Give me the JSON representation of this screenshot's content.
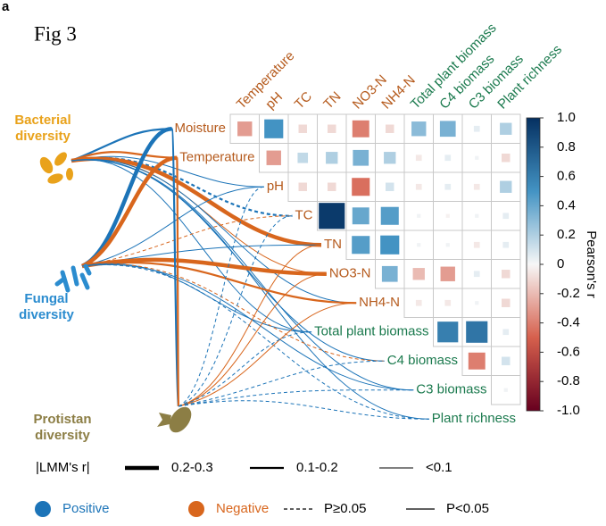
{
  "panel_label": "a",
  "fig_title": "Fig 3",
  "chart_data": {
    "type": "heatmap",
    "columns": [
      "Temperature",
      "pH",
      "TC",
      "TN",
      "NO3-N",
      "NH4-N",
      "Total plant biomass",
      "C4 biomass",
      "C3 biomass",
      "Plant richness"
    ],
    "values": [
      [
        -0.3,
        0.5,
        -0.1,
        -0.1,
        -0.4,
        -0.1,
        0.3,
        0.35,
        0.05,
        0.2
      ],
      [
        null,
        -0.3,
        0.15,
        0.2,
        0.35,
        0.2,
        -0.05,
        0.05,
        0.02,
        -0.1
      ],
      [
        null,
        null,
        -0.1,
        -0.1,
        -0.45,
        0.1,
        -0.05,
        0.05,
        -0.05,
        0.2
      ],
      [
        null,
        null,
        null,
        0.95,
        0.4,
        0.45,
        0.02,
        -0.02,
        0.02,
        0.05
      ],
      [
        null,
        null,
        null,
        null,
        0.45,
        0.5,
        0.02,
        0.02,
        -0.05,
        0.05
      ],
      [
        null,
        null,
        null,
        null,
        null,
        0.35,
        -0.2,
        -0.3,
        0.05,
        -0.1
      ],
      [
        null,
        null,
        null,
        null,
        null,
        null,
        -0.05,
        -0.05,
        0.02,
        -0.1
      ],
      [
        null,
        null,
        null,
        null,
        null,
        null,
        null,
        0.6,
        0.65,
        0.05
      ],
      [
        null,
        null,
        null,
        null,
        null,
        null,
        null,
        null,
        -0.4,
        0.1
      ],
      [
        null,
        null,
        null,
        null,
        null,
        null,
        null,
        null,
        null,
        0.02
      ]
    ],
    "clim": [
      -1,
      1
    ],
    "cticks": [
      {
        "value": 1,
        "label": "1.0"
      },
      0.8,
      0.6,
      0.4,
      0.2,
      0,
      -0.2,
      -0.4,
      -0.6,
      -0.8,
      {
        "value": -1,
        "label": "-1.0"
      }
    ],
    "colorbar_label": "Pearson's r"
  },
  "network": {
    "sources": [
      {
        "lines": [
          "Bacterial",
          "diversity"
        ],
        "color": "#e9a21b"
      },
      {
        "lines": [
          "Fungal",
          "diversity"
        ],
        "color": "#2b8ccf"
      },
      {
        "lines": [
          "Protistan",
          "diversity"
        ],
        "color": "#8c7e45"
      }
    ],
    "targets": [
      {
        "label": "Moisture",
        "color": "#b55a1c"
      },
      {
        "label": "Temperature",
        "color": "#b55a1c"
      },
      {
        "label": "pH",
        "color": "#b55a1c"
      },
      {
        "label": "TC",
        "color": "#b55a1c"
      },
      {
        "label": "TN",
        "color": "#b55a1c"
      },
      {
        "label": "NO3-N",
        "color": "#b55a1c"
      },
      {
        "label": "NH4-N",
        "color": "#b55a1c"
      },
      {
        "label": "Total plant biomass",
        "color": "#1b7a4e"
      },
      {
        "label": "C4 biomass",
        "color": "#1b7a4e"
      },
      {
        "label": "C3 biomass",
        "color": "#1b7a4e"
      },
      {
        "label": "Plant richness",
        "color": "#1b7a4e"
      }
    ],
    "links": [
      {
        "s": 0,
        "t": 0,
        "sign": 1,
        "w": 1,
        "sig": true
      },
      {
        "s": 0,
        "t": 1,
        "sign": 2,
        "w": 1,
        "sig": true
      },
      {
        "s": 0,
        "t": 2,
        "sign": 1,
        "w": 2,
        "sig": true
      },
      {
        "s": 0,
        "t": 3,
        "sign": 1,
        "w": 1,
        "sig": false
      },
      {
        "s": 0,
        "t": 4,
        "sign": 2,
        "w": 0,
        "sig": true
      },
      {
        "s": 0,
        "t": 5,
        "sign": 2,
        "w": 2,
        "sig": true
      },
      {
        "s": 0,
        "t": 6,
        "sign": 1,
        "w": 2,
        "sig": true
      },
      {
        "s": 0,
        "t": 7,
        "sign": 1,
        "w": 2,
        "sig": true
      },
      {
        "s": 0,
        "t": 8,
        "sign": 1,
        "w": 2,
        "sig": true
      },
      {
        "s": 0,
        "t": 9,
        "sign": 1,
        "w": 2,
        "sig": true
      },
      {
        "s": 0,
        "t": 10,
        "sign": 1,
        "w": 2,
        "sig": true
      },
      {
        "s": 1,
        "t": 0,
        "sign": 1,
        "w": 0,
        "sig": true
      },
      {
        "s": 1,
        "t": 1,
        "sign": 2,
        "w": 0,
        "sig": true
      },
      {
        "s": 1,
        "t": 2,
        "sign": 1,
        "w": 2,
        "sig": true
      },
      {
        "s": 1,
        "t": 3,
        "sign": 2,
        "w": 2,
        "sig": false
      },
      {
        "s": 1,
        "t": 4,
        "sign": 1,
        "w": 2,
        "sig": true
      },
      {
        "s": 1,
        "t": 5,
        "sign": 2,
        "w": 0,
        "sig": true
      },
      {
        "s": 1,
        "t": 6,
        "sign": 2,
        "w": 1,
        "sig": true
      },
      {
        "s": 1,
        "t": 7,
        "sign": 1,
        "w": 2,
        "sig": true
      },
      {
        "s": 1,
        "t": 8,
        "sign": 2,
        "w": 2,
        "sig": false
      },
      {
        "s": 1,
        "t": 9,
        "sign": 1,
        "w": 2,
        "sig": true
      },
      {
        "s": 1,
        "t": 10,
        "sign": 1,
        "w": 2,
        "sig": false
      },
      {
        "s": 2,
        "t": 0,
        "sign": 1,
        "w": 1,
        "sig": true
      },
      {
        "s": 2,
        "t": 1,
        "sign": 2,
        "w": 1,
        "sig": true
      },
      {
        "s": 2,
        "t": 2,
        "sign": 1,
        "w": 2,
        "sig": false
      },
      {
        "s": 2,
        "t": 3,
        "sign": 1,
        "w": 2,
        "sig": false
      },
      {
        "s": 2,
        "t": 4,
        "sign": 2,
        "w": 2,
        "sig": true
      },
      {
        "s": 2,
        "t": 5,
        "sign": 2,
        "w": 2,
        "sig": true
      },
      {
        "s": 2,
        "t": 6,
        "sign": 2,
        "w": 2,
        "sig": true
      },
      {
        "s": 2,
        "t": 7,
        "sign": 1,
        "w": 2,
        "sig": false
      },
      {
        "s": 2,
        "t": 8,
        "sign": 1,
        "w": 2,
        "sig": false
      },
      {
        "s": 2,
        "t": 9,
        "sign": 1,
        "w": 2,
        "sig": false
      },
      {
        "s": 2,
        "t": 10,
        "sign": 1,
        "w": 2,
        "sig": false
      }
    ]
  },
  "legend": {
    "strength_title": "|LMM's r|",
    "strengths": [
      "0.2-0.3",
      "0.1-0.2",
      "<0.1"
    ],
    "signs": [
      {
        "label": "Positive",
        "color": "#1c74b8"
      },
      {
        "label": "Negative",
        "color": "#d8661d"
      }
    ],
    "significance": [
      "P≥0.05",
      "P<0.05"
    ]
  }
}
